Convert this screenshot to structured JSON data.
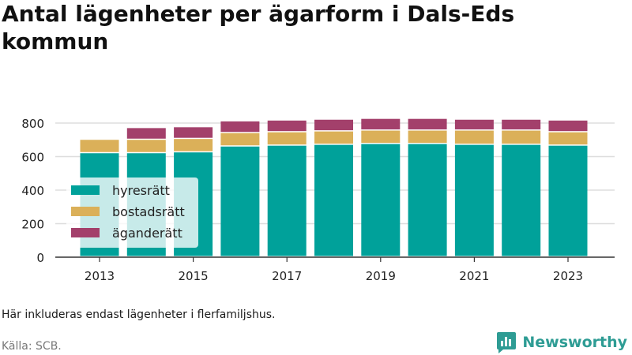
{
  "title": "Antal lägenheter per ägarform i Dals-Eds kommun",
  "note": "Här inkluderas endast lägenheter i flerfamiljshus.",
  "source": "Källa: SCB.",
  "brand": {
    "name": "Newsworthy",
    "icon": "bar-chart-speech-bubble-icon",
    "color": "#2e9c94"
  },
  "chart_data": {
    "type": "bar",
    "stacked": true,
    "x": [
      2013,
      2014,
      2015,
      2016,
      2017,
      2018,
      2019,
      2020,
      2021,
      2022,
      2023
    ],
    "x_tick_labels": [
      "2013",
      "2015",
      "2017",
      "2019",
      "2021",
      "2023"
    ],
    "series": [
      {
        "name": "hyresrätt",
        "color": "#00a19a",
        "values": [
          620,
          620,
          625,
          660,
          665,
          670,
          675,
          675,
          670,
          670,
          665
        ]
      },
      {
        "name": "bostadsrätt",
        "color": "#dbb059",
        "values": [
          80,
          80,
          80,
          80,
          80,
          80,
          80,
          80,
          85,
          85,
          80
        ]
      },
      {
        "name": "äganderätt",
        "color": "#a3406b",
        "values": [
          0,
          70,
          70,
          70,
          70,
          70,
          70,
          70,
          65,
          65,
          70
        ]
      }
    ],
    "ylim": [
      0,
      800
    ],
    "y_ticks": [
      0,
      200,
      400,
      600,
      800
    ],
    "grid": true,
    "legend_position": "bottom-left inside"
  }
}
